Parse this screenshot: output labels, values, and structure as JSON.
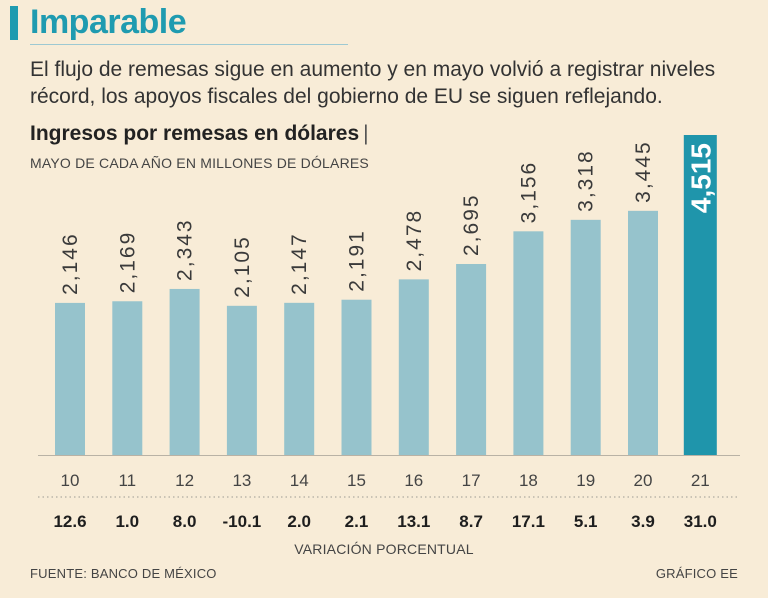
{
  "header": {
    "title": "Imparable",
    "subtitle": "El flujo de remesas sigue en aumento y en mayo volvió a registrar niveles récord, los apoyos fiscales del gobierno de EU se siguen reflejando."
  },
  "chart_data": {
    "type": "bar",
    "title": "Ingresos por remesas en dólares",
    "title_separator": "|",
    "subtitle": "MAYO DE CADA AÑO EN MILLONES DE DÓLARES",
    "categories": [
      "10",
      "11",
      "12",
      "13",
      "14",
      "15",
      "16",
      "17",
      "18",
      "19",
      "20",
      "21"
    ],
    "values": [
      2146,
      2169,
      2343,
      2105,
      2147,
      2191,
      2478,
      2695,
      3156,
      3318,
      3445,
      4515
    ],
    "value_labels": [
      "2,146",
      "2,169",
      "2,343",
      "2,105",
      "2,147",
      "2,191",
      "2,478",
      "2,695",
      "3,156",
      "3,318",
      "3,445",
      "4,515"
    ],
    "variation": [
      "12.6",
      "1.0",
      "8.0",
      "-10.1",
      "2.0",
      "2.1",
      "13.1",
      "8.7",
      "17.1",
      "5.1",
      "3.9",
      "31.0"
    ],
    "variation_label": "VARIACIÓN PORCENTUAL",
    "highlight_index": 11,
    "ylim": [
      0,
      4515
    ],
    "grid": false
  },
  "colors": {
    "background": "#f8ecd7",
    "accent": "#1f9bb0",
    "bar": "#96c3cc",
    "highlight_bar": "#1f95ab"
  },
  "footer": {
    "source": "FUENTE: BANCO DE MÉXICO",
    "credit": "GRÁFICO EE"
  }
}
